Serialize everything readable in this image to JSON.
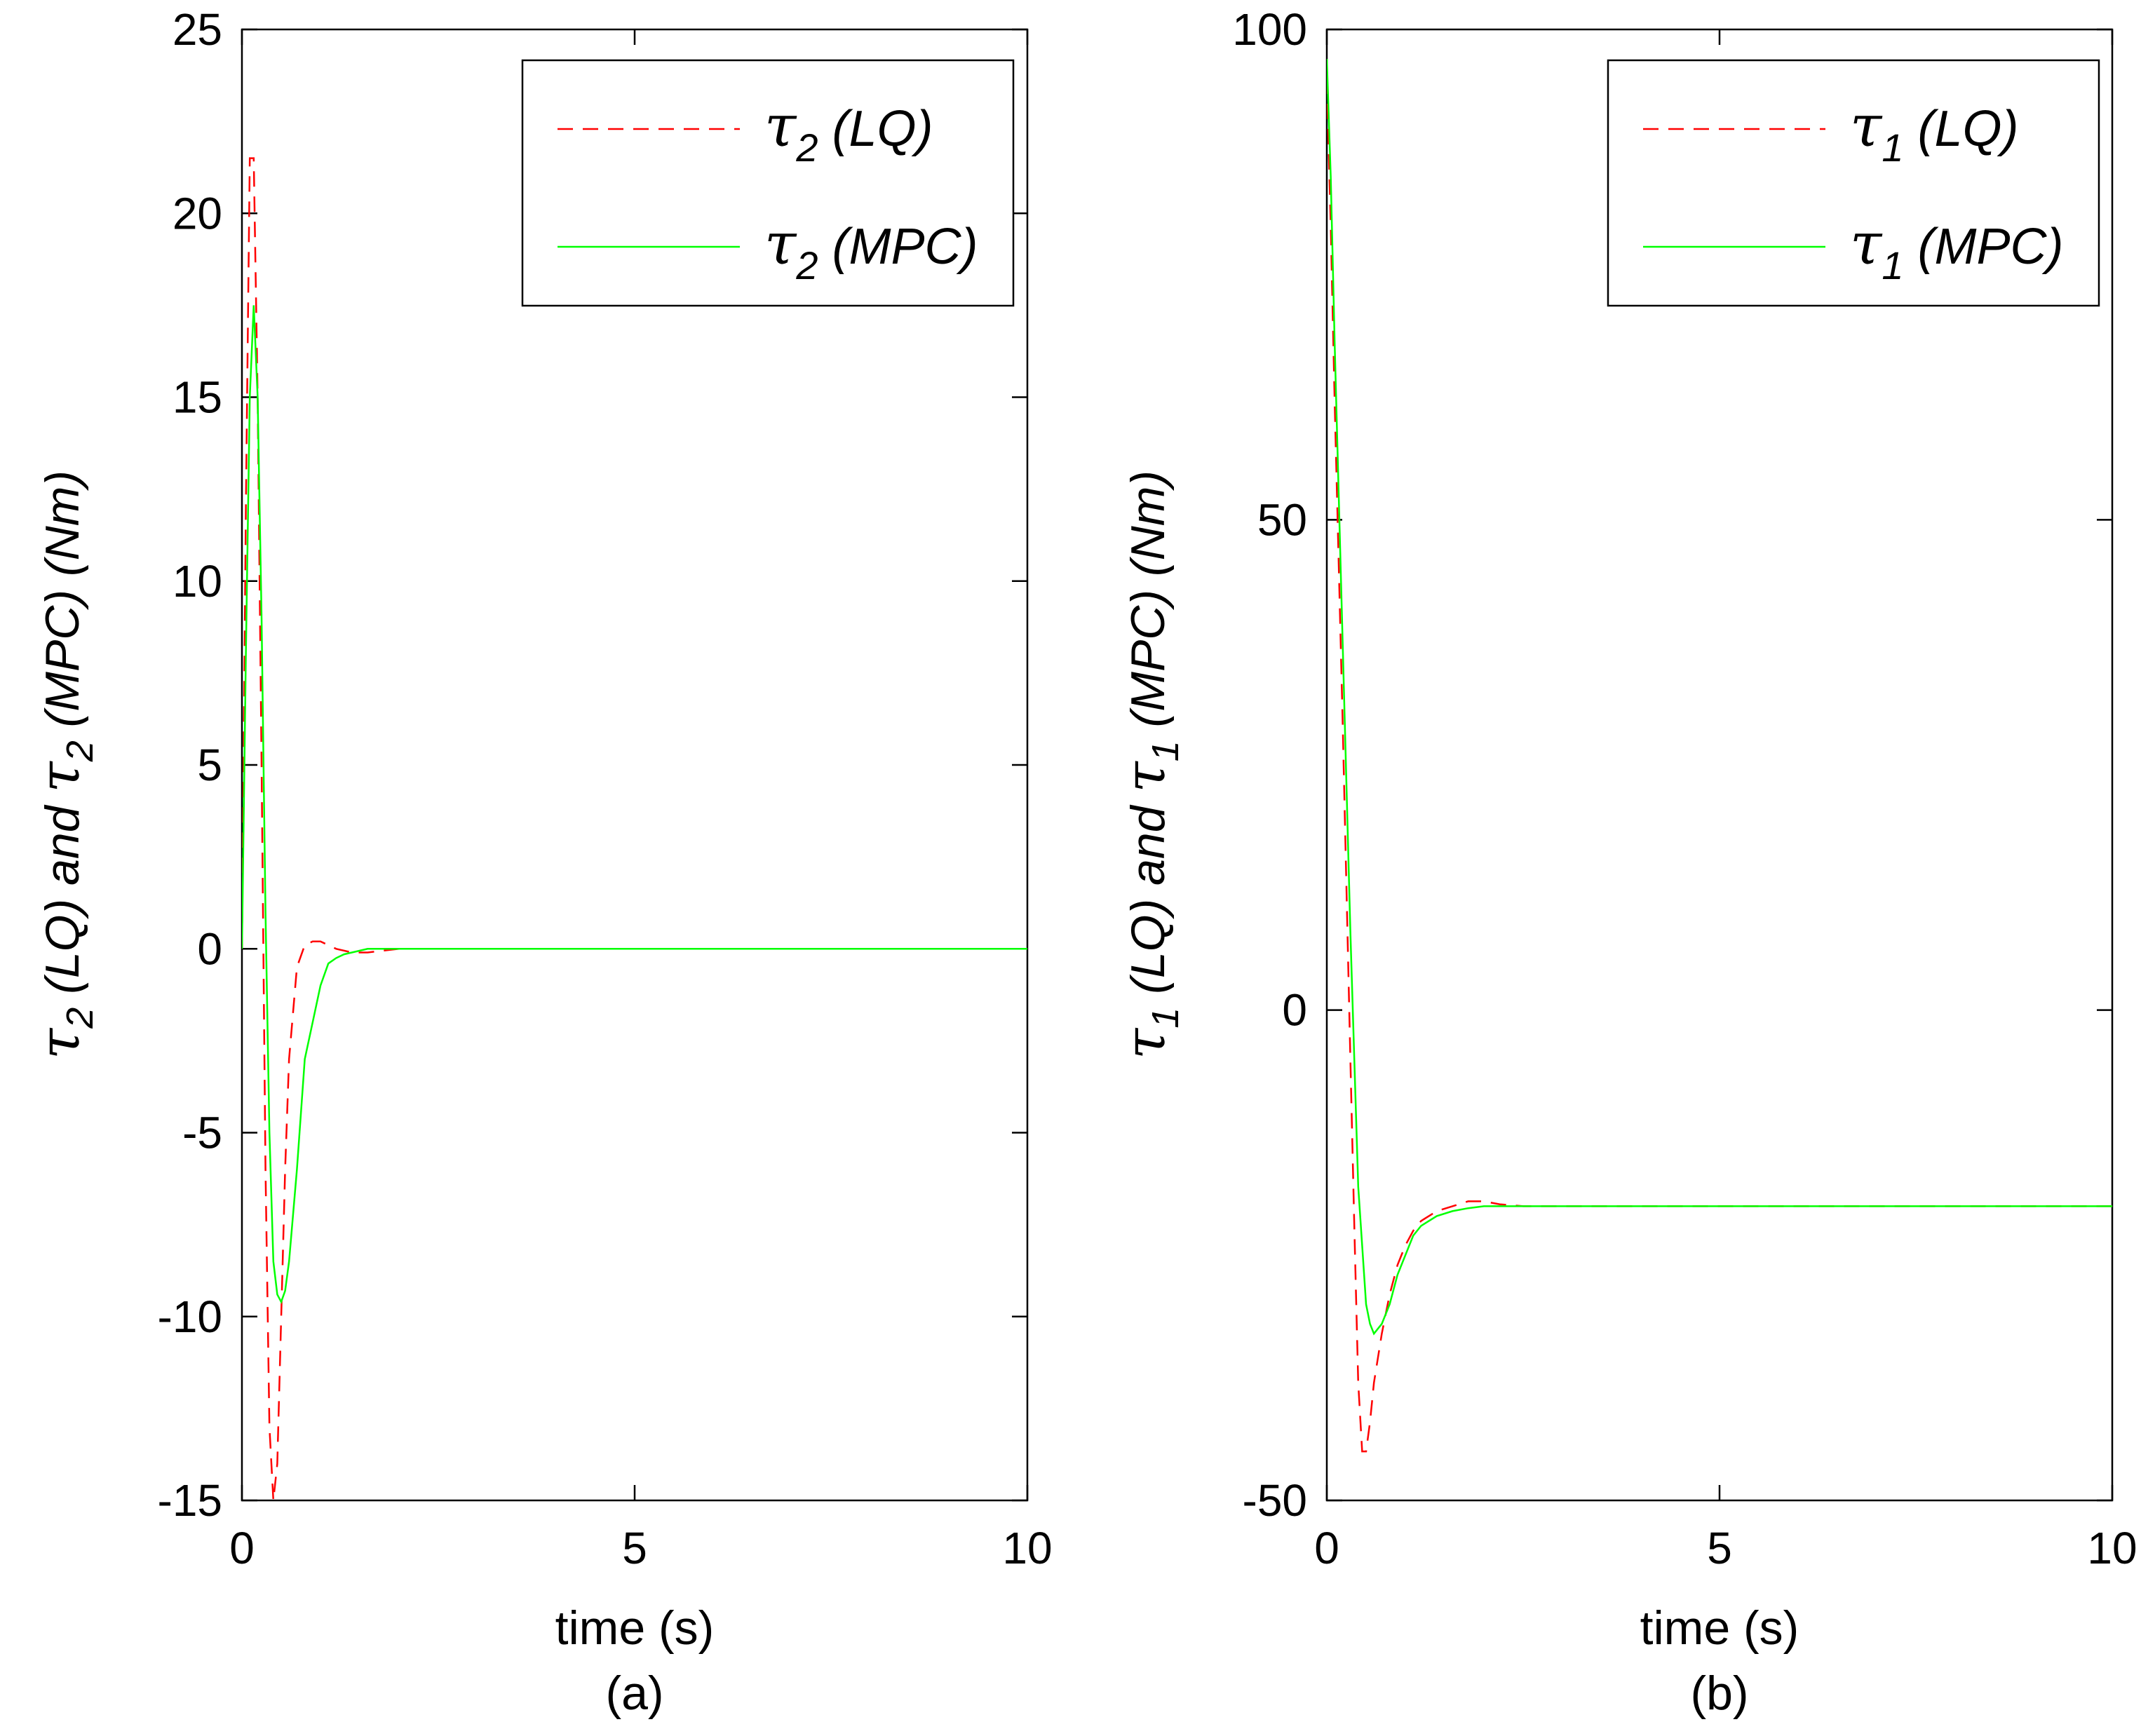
{
  "colors": {
    "lq": "#ff0000",
    "mpc": "#00ff00",
    "axis": "#000000"
  },
  "chart_data": [
    {
      "type": "line",
      "sublabel": "(a)",
      "xlabel": "time (s)",
      "ylabel": {
        "sym1": "τ",
        "sub1": "2",
        "mid": " (LQ) and ",
        "sym2": "τ",
        "sub2": "2",
        "end": " (MPC) (Nm)"
      },
      "xlim": [
        0,
        10
      ],
      "ylim": [
        -15,
        25
      ],
      "xticks": [
        0,
        5,
        10
      ],
      "yticks": [
        -15,
        -10,
        -5,
        0,
        5,
        10,
        15,
        20,
        25
      ],
      "grid": false,
      "legend_position": "top-right",
      "series": [
        {
          "key": "lq",
          "style": "dashed",
          "legend": {
            "sym": "τ",
            "sub": "2",
            "rest": " (LQ)"
          },
          "x": [
            0,
            0.05,
            0.1,
            0.15,
            0.2,
            0.25,
            0.3,
            0.35,
            0.4,
            0.45,
            0.5,
            0.55,
            0.6,
            0.7,
            0.8,
            0.9,
            1.0,
            1.1,
            1.2,
            1.4,
            1.6,
            2,
            3,
            4,
            5,
            6,
            7,
            8,
            9,
            10
          ],
          "y": [
            0,
            12,
            21.5,
            21.5,
            15,
            5,
            -6,
            -13,
            -15,
            -14,
            -10,
            -6,
            -3,
            -0.5,
            0.1,
            0.2,
            0.2,
            0.1,
            0,
            -0.1,
            -0.1,
            0,
            0,
            0,
            0,
            0,
            0,
            0,
            0,
            0
          ]
        },
        {
          "key": "mpc",
          "style": "solid",
          "legend": {
            "sym": "τ",
            "sub": "2",
            "rest": " (MPC)"
          },
          "x": [
            0,
            0.05,
            0.1,
            0.15,
            0.2,
            0.25,
            0.3,
            0.35,
            0.4,
            0.45,
            0.5,
            0.55,
            0.6,
            0.7,
            0.8,
            0.9,
            1.0,
            1.1,
            1.2,
            1.3,
            1.5,
            1.6,
            2,
            3,
            4,
            5,
            6,
            7,
            8,
            9,
            10
          ],
          "y": [
            0,
            8,
            15,
            17.5,
            15,
            9,
            1,
            -5,
            -8.5,
            -9.4,
            -9.6,
            -9.3,
            -8.5,
            -6,
            -3,
            -2,
            -1,
            -0.4,
            -0.25,
            -0.15,
            -0.05,
            0,
            0,
            0,
            0,
            0,
            0,
            0,
            0,
            0,
            0
          ]
        }
      ]
    },
    {
      "type": "line",
      "sublabel": "(b)",
      "xlabel": "time (s)",
      "ylabel": {
        "sym1": "τ",
        "sub1": "1",
        "mid": " (LQ) and ",
        "sym2": "τ",
        "sub2": "1",
        "end": " (MPC) (Nm)"
      },
      "xlim": [
        0,
        10
      ],
      "ylim": [
        -50,
        100
      ],
      "xticks": [
        0,
        5,
        10
      ],
      "yticks": [
        -50,
        0,
        50,
        100
      ],
      "grid": false,
      "legend_position": "top-right",
      "series": [
        {
          "key": "lq",
          "style": "dashed",
          "legend": {
            "sym": "τ",
            "sub": "1",
            "rest": " (LQ)"
          },
          "x": [
            0,
            0.05,
            0.1,
            0.2,
            0.3,
            0.35,
            0.4,
            0.45,
            0.5,
            0.55,
            0.6,
            0.7,
            0.8,
            0.9,
            1.0,
            1.1,
            1.2,
            1.4,
            1.6,
            1.8,
            2.0,
            2.2,
            2.5,
            3,
            4,
            5,
            6,
            7,
            8,
            9,
            10
          ],
          "y": [
            95,
            80,
            62,
            30,
            -5,
            -22,
            -38,
            -45,
            -45,
            -42,
            -38,
            -33,
            -29,
            -26,
            -24,
            -22.5,
            -21.5,
            -20.5,
            -20,
            -19.5,
            -19.5,
            -19.8,
            -20,
            -20,
            -20,
            -20,
            -20,
            -20,
            -20,
            -20,
            -20
          ]
        },
        {
          "key": "mpc",
          "style": "solid",
          "legend": {
            "sym": "τ",
            "sub": "1",
            "rest": " (MPC)"
          },
          "x": [
            0,
            0.05,
            0.1,
            0.2,
            0.3,
            0.4,
            0.5,
            0.55,
            0.6,
            0.7,
            0.8,
            0.9,
            1.0,
            1.1,
            1.2,
            1.4,
            1.6,
            1.8,
            2.0,
            3,
            4,
            5,
            6,
            7,
            8,
            9,
            10
          ],
          "y": [
            97,
            85,
            68,
            38,
            8,
            -18,
            -30,
            -32,
            -33,
            -32,
            -30,
            -27,
            -25,
            -23,
            -22,
            -21,
            -20.5,
            -20.2,
            -20,
            -20,
            -20,
            -20,
            -20,
            -20,
            -20,
            -20,
            -20
          ]
        }
      ]
    }
  ]
}
